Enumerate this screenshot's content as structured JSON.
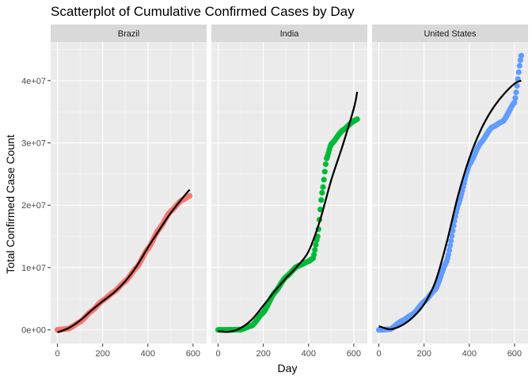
{
  "chart_data": {
    "type": "scatter",
    "title": "Scatterplot of Cumulative Confirmed Cases by Day",
    "xlabel": "Day",
    "ylabel": "Total Confirmed Case Count",
    "x_ticks": [
      "0",
      "200",
      "400",
      "600"
    ],
    "y_ticks": [
      "0e+00",
      "1e+07",
      "2e+07",
      "3e+07",
      "4e+07"
    ],
    "x_tick_values": [
      0,
      200,
      400,
      600
    ],
    "y_tick_values": [
      0,
      10000000,
      20000000,
      30000000,
      40000000
    ],
    "xlim": [
      -30,
      660
    ],
    "ylim": [
      -2200000,
      46200000
    ],
    "grid": true,
    "legend": "none",
    "smooth_color": "#000000",
    "panels": [
      {
        "name": "Brazil",
        "color": "#F8766D",
        "x_max": 585,
        "points": [
          [
            0,
            0
          ],
          [
            50,
            200000
          ],
          [
            100,
            1300000
          ],
          [
            150,
            3000000
          ],
          [
            200,
            4700000
          ],
          [
            250,
            6100000
          ],
          [
            300,
            7800000
          ],
          [
            350,
            10000000
          ],
          [
            400,
            13000000
          ],
          [
            450,
            16200000
          ],
          [
            500,
            19000000
          ],
          [
            550,
            20800000
          ],
          [
            585,
            21500000
          ]
        ],
        "smooth": [
          [
            0,
            -400000
          ],
          [
            50,
            300000
          ],
          [
            100,
            1500000
          ],
          [
            150,
            3100000
          ],
          [
            200,
            4600000
          ],
          [
            250,
            6000000
          ],
          [
            300,
            7800000
          ],
          [
            350,
            10200000
          ],
          [
            400,
            13200000
          ],
          [
            450,
            16000000
          ],
          [
            500,
            18700000
          ],
          [
            550,
            21000000
          ],
          [
            585,
            22500000
          ]
        ]
      },
      {
        "name": "India",
        "color": "#00BA38",
        "x_max": 615,
        "points": [
          [
            0,
            0
          ],
          [
            50,
            0
          ],
          [
            100,
            50000
          ],
          [
            150,
            700000
          ],
          [
            200,
            2800000
          ],
          [
            250,
            6000000
          ],
          [
            300,
            8500000
          ],
          [
            350,
            10200000
          ],
          [
            400,
            11000000
          ],
          [
            420,
            11500000
          ],
          [
            440,
            15000000
          ],
          [
            460,
            22000000
          ],
          [
            480,
            27500000
          ],
          [
            500,
            29800000
          ],
          [
            550,
            32000000
          ],
          [
            600,
            33500000
          ],
          [
            615,
            33800000
          ]
        ],
        "smooth": [
          [
            0,
            -200000
          ],
          [
            50,
            -300000
          ],
          [
            100,
            300000
          ],
          [
            150,
            1700000
          ],
          [
            200,
            3900000
          ],
          [
            250,
            6200000
          ],
          [
            300,
            8300000
          ],
          [
            350,
            10200000
          ],
          [
            400,
            12600000
          ],
          [
            450,
            17500000
          ],
          [
            500,
            24000000
          ],
          [
            550,
            29500000
          ],
          [
            600,
            35500000
          ],
          [
            615,
            38200000
          ]
        ]
      },
      {
        "name": "United States",
        "color": "#619CFF",
        "x_max": 630,
        "points": [
          [
            0,
            0
          ],
          [
            50,
            100000
          ],
          [
            100,
            1400000
          ],
          [
            150,
            2500000
          ],
          [
            200,
            4500000
          ],
          [
            250,
            6500000
          ],
          [
            300,
            11000000
          ],
          [
            350,
            20000000
          ],
          [
            400,
            26500000
          ],
          [
            450,
            30000000
          ],
          [
            500,
            32500000
          ],
          [
            550,
            33500000
          ],
          [
            600,
            36500000
          ],
          [
            630,
            44000000
          ]
        ],
        "smooth": [
          [
            0,
            600000
          ],
          [
            50,
            100000
          ],
          [
            100,
            700000
          ],
          [
            150,
            2000000
          ],
          [
            200,
            4100000
          ],
          [
            250,
            7700000
          ],
          [
            300,
            14000000
          ],
          [
            350,
            21500000
          ],
          [
            400,
            27500000
          ],
          [
            450,
            32000000
          ],
          [
            500,
            35300000
          ],
          [
            550,
            37700000
          ],
          [
            600,
            39500000
          ],
          [
            630,
            40000000
          ]
        ]
      }
    ]
  }
}
